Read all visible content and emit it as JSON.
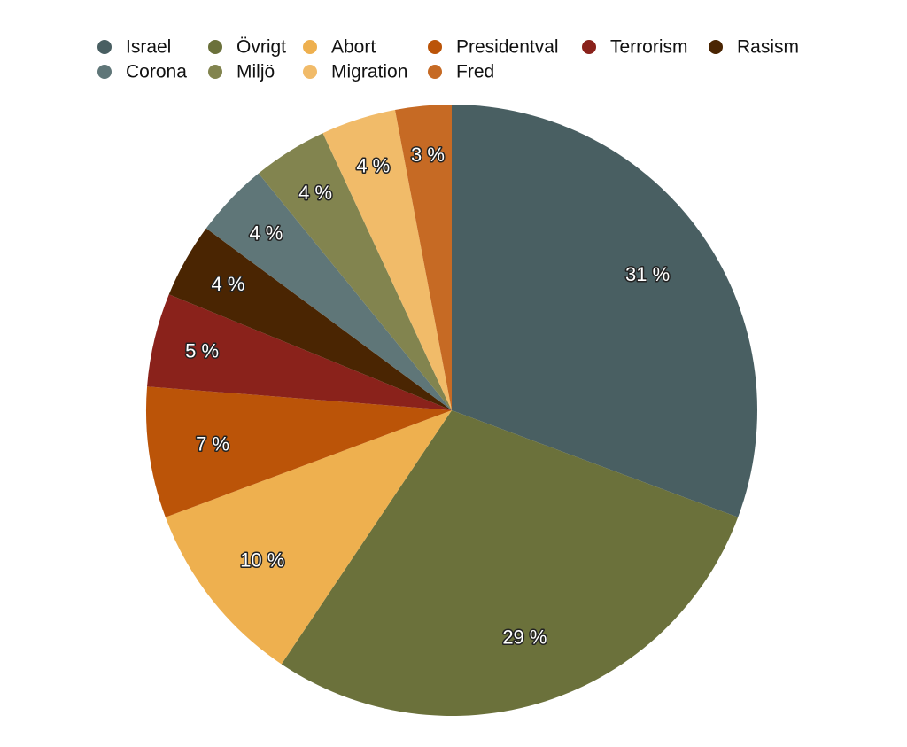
{
  "chart_data": {
    "type": "pie",
    "title": "",
    "legend_position": "top",
    "slices": [
      {
        "label": "Israel",
        "value": 31,
        "display": "31 %",
        "color": "#495f62"
      },
      {
        "label": "Övrigt",
        "value": 29,
        "display": "29 %",
        "color": "#6b713b"
      },
      {
        "label": "Abort",
        "value": 10,
        "display": "10 %",
        "color": "#eeb04f"
      },
      {
        "label": "Presidentval",
        "value": 7,
        "display": "7 %",
        "color": "#bb5408"
      },
      {
        "label": "Terrorism",
        "value": 5,
        "display": "5 %",
        "color": "#8a221b"
      },
      {
        "label": "Rasism",
        "value": 4,
        "display": "4 %",
        "color": "#4a2502"
      },
      {
        "label": "Corona",
        "value": 4,
        "display": "4 %",
        "color": "#5f7678"
      },
      {
        "label": "Miljö",
        "value": 4,
        "display": "4 %",
        "color": "#82844f"
      },
      {
        "label": "Migration",
        "value": 4,
        "display": "4 %",
        "color": "#f1bb69"
      },
      {
        "label": "Fred",
        "value": 3,
        "display": "3 %",
        "color": "#c66a24"
      }
    ],
    "legend_order": [
      "Israel",
      "Övrigt",
      "Abort",
      "Presidentval",
      "Terrorism",
      "Rasism",
      "Corona",
      "Miljö",
      "Migration",
      "Fred"
    ]
  }
}
